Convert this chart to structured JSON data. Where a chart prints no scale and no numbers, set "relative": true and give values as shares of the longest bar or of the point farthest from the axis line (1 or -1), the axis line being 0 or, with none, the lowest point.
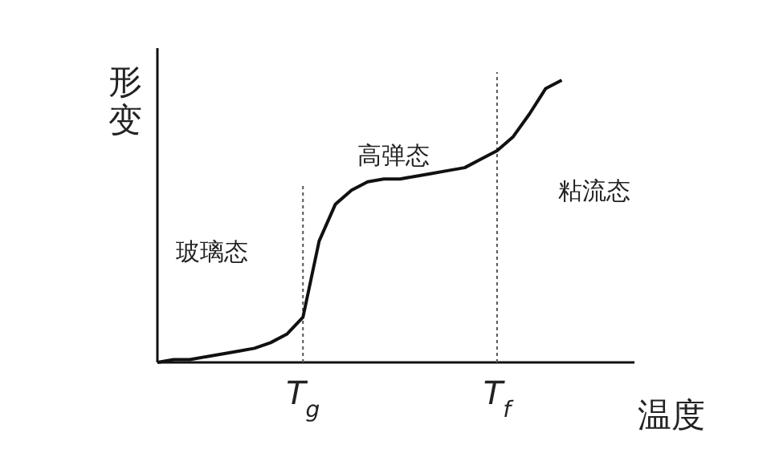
{
  "chart_data": {
    "type": "line",
    "relative": true,
    "xlabel": "温度",
    "ylabel": "形变",
    "categories": [
      null,
      null,
      null,
      null,
      null,
      null,
      null,
      null,
      null,
      "T$_{g}$",
      null,
      null,
      null,
      null,
      null,
      null,
      null,
      null,
      null,
      null,
      null,
      "T$_{f}$",
      null,
      null,
      null,
      null
    ],
    "series": [
      {
        "color": "#111111",
        "values": [
          0,
          0.01,
          0.01,
          0.02,
          0.03,
          0.04,
          0.05,
          0.07,
          0.1,
          0.16,
          0.43,
          0.56,
          0.61,
          0.64,
          0.65,
          0.65,
          0.66,
          0.67,
          0.68,
          0.69,
          0.72,
          0.75,
          0.8,
          0.88,
          0.97,
          1
        ]
      }
    ],
    "ref_lines": [
      {
        "axis": "x",
        "value": "T$_{g}$",
        "line_style": "dotted",
        "color": "#555555"
      },
      {
        "axis": "x",
        "value": "T$_{f}$",
        "line_style": "dotted",
        "color": "#555555"
      }
    ],
    "annotations": [
      "玻璃态",
      "高弹态",
      "粘流态"
    ],
    "line_style": "solid"
  }
}
